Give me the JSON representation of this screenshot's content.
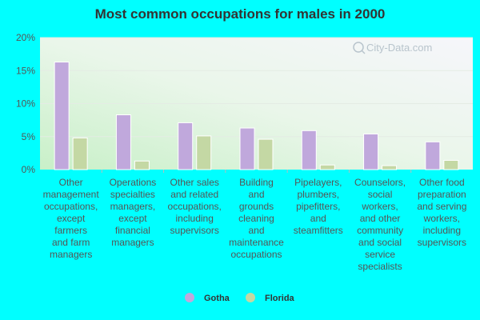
{
  "chart_data": {
    "type": "bar",
    "title": "Most common occupations for males in 2000",
    "categories": [
      [
        "Other",
        "management",
        "occupations,",
        "except",
        "farmers",
        "and farm",
        "managers"
      ],
      [
        "Operations",
        "specialties",
        "managers,",
        "except",
        "financial",
        "managers"
      ],
      [
        "Other sales",
        "and related",
        "occupations,",
        "including",
        "supervisors"
      ],
      [
        "Building",
        "and",
        "grounds",
        "cleaning",
        "and",
        "maintenance",
        "occupations"
      ],
      [
        "Pipelayers,",
        "plumbers,",
        "pipefitters,",
        "and",
        "steamfitters"
      ],
      [
        "Counselors,",
        "social",
        "workers,",
        "and other",
        "community",
        "and social",
        "service",
        "specialists"
      ],
      [
        "Other food",
        "preparation",
        "and serving",
        "workers,",
        "including",
        "supervisors"
      ]
    ],
    "series": [
      {
        "name": "Gotha",
        "color": "#c0a8dc",
        "values": [
          16.3,
          8.3,
          7.1,
          6.3,
          5.9,
          5.4,
          4.2
        ]
      },
      {
        "name": "Florida",
        "color": "#c4d8a4",
        "values": [
          4.8,
          1.3,
          5.1,
          4.6,
          0.7,
          0.6,
          1.4
        ]
      }
    ],
    "yticks": [
      "0%",
      "5%",
      "10%",
      "15%",
      "20%"
    ],
    "ylim": [
      0,
      20
    ],
    "grid": true,
    "legend": "bottom-center"
  },
  "watermark": "City-Data.com"
}
